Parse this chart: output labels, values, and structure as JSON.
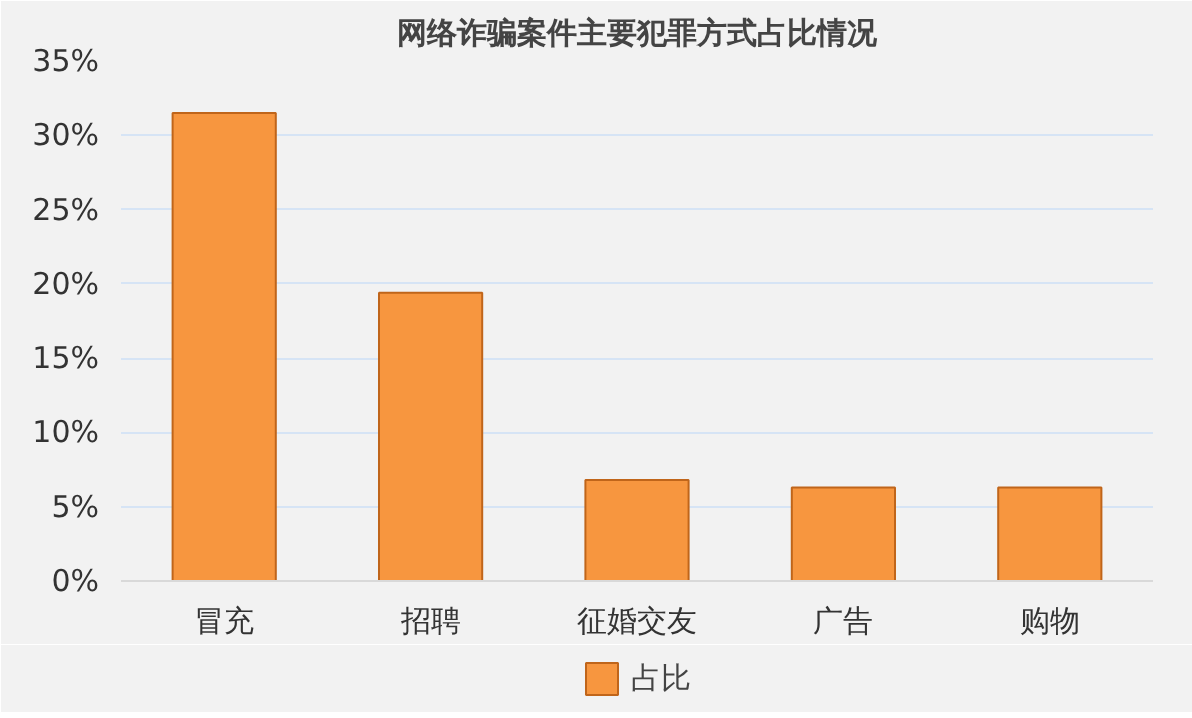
{
  "chart_data": {
    "type": "bar",
    "title": "网络诈骗案件主要犯罪方式占比情况",
    "categories": [
      "冒充",
      "招聘",
      "征婚交友",
      "广告",
      "购物"
    ],
    "series": [
      {
        "name": "占比",
        "color": "#f7963f",
        "values": [
          31.5,
          19.4,
          6.8,
          6.3,
          6.3
        ]
      }
    ],
    "ylim": [
      0,
      35
    ],
    "yticks": [
      {
        "value": 0,
        "label": "0%"
      },
      {
        "value": 5,
        "label": "5%"
      },
      {
        "value": 10,
        "label": "10%"
      },
      {
        "value": 15,
        "label": "15%"
      },
      {
        "value": 20,
        "label": "20%"
      },
      {
        "value": 25,
        "label": "25%"
      },
      {
        "value": 30,
        "label": "30%"
      },
      {
        "value": 35,
        "label": "35%"
      }
    ],
    "grid": "y",
    "legend": "bottom"
  }
}
